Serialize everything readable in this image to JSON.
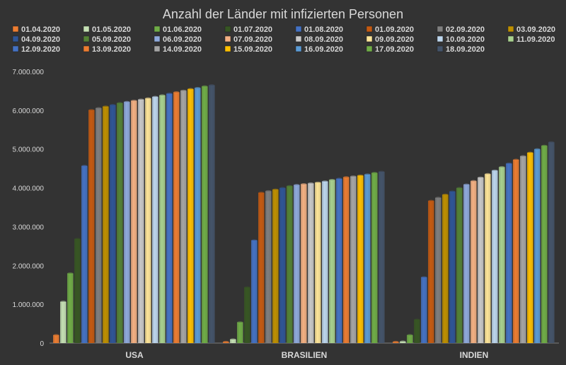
{
  "chart_data": {
    "type": "bar",
    "title": "Anzahl der Länder mit infizierten Personen",
    "xlabel": "",
    "ylabel": "",
    "ylim": [
      0,
      7000000
    ],
    "yticks": [
      "0",
      "1.000.000",
      "2.000.000",
      "3.000.000",
      "4.000.000",
      "5.000.000",
      "6.000.000",
      "7.000.000"
    ],
    "grid": false,
    "legend_position": "top",
    "categories": [
      "USA",
      "BRASILIEN",
      "INDIEN"
    ],
    "series": [
      {
        "name": "01.04.2020",
        "color": "#ed7d31",
        "values": [
          200000,
          6000,
          2000
        ]
      },
      {
        "name": "01.05.2020",
        "color": "#c5e0b4",
        "values": [
          1060000,
          90000,
          35000
        ]
      },
      {
        "name": "01.06.2020",
        "color": "#70ad47",
        "values": [
          1790000,
          530000,
          200000
        ]
      },
      {
        "name": "01.07.2020",
        "color": "#375623",
        "values": [
          2680000,
          1430000,
          600000
        ]
      },
      {
        "name": "01.08.2020",
        "color": "#4472c4",
        "values": [
          4560000,
          2640000,
          1690000
        ]
      },
      {
        "name": "01.09.2020",
        "color": "#c55a11",
        "values": [
          6000000,
          3870000,
          3660000
        ]
      },
      {
        "name": "02.09.2020",
        "color": "#7f7f7f",
        "values": [
          6050000,
          3910000,
          3740000
        ]
      },
      {
        "name": "03.09.2020",
        "color": "#bf9000",
        "values": [
          6090000,
          3950000,
          3820000
        ]
      },
      {
        "name": "04.09.2020",
        "color": "#2f5597",
        "values": [
          6130000,
          3990000,
          3900000
        ]
      },
      {
        "name": "05.09.2020",
        "color": "#548235",
        "values": [
          6180000,
          4040000,
          3990000
        ]
      },
      {
        "name": "06.09.2020",
        "color": "#8faadc",
        "values": [
          6210000,
          4070000,
          4080000
        ]
      },
      {
        "name": "07.09.2020",
        "color": "#f4b183",
        "values": [
          6240000,
          4090000,
          4170000
        ]
      },
      {
        "name": "08.09.2020",
        "color": "#c9c9c9",
        "values": [
          6270000,
          4110000,
          4260000
        ]
      },
      {
        "name": "09.09.2020",
        "color": "#ffe699",
        "values": [
          6300000,
          4130000,
          4350000
        ]
      },
      {
        "name": "10.09.2020",
        "color": "#bdd7ee",
        "values": [
          6340000,
          4160000,
          4440000
        ]
      },
      {
        "name": "11.09.2020",
        "color": "#a9d18e",
        "values": [
          6380000,
          4200000,
          4530000
        ]
      },
      {
        "name": "12.09.2020",
        "color": "#4472c4",
        "values": [
          6420000,
          4230000,
          4620000
        ]
      },
      {
        "name": "13.09.2020",
        "color": "#ed7d31",
        "values": [
          6460000,
          4270000,
          4720000
        ]
      },
      {
        "name": "14.09.2020",
        "color": "#a5a5a5",
        "values": [
          6500000,
          4290000,
          4810000
        ]
      },
      {
        "name": "15.09.2020",
        "color": "#ffc000",
        "values": [
          6540000,
          4310000,
          4900000
        ]
      },
      {
        "name": "16.09.2020",
        "color": "#5b9bd5",
        "values": [
          6570000,
          4340000,
          4990000
        ]
      },
      {
        "name": "17.09.2020",
        "color": "#70ad47",
        "values": [
          6610000,
          4380000,
          5080000
        ]
      },
      {
        "name": "18.09.2020",
        "color": "#44546a",
        "values": [
          6640000,
          4410000,
          5170000
        ]
      }
    ]
  }
}
